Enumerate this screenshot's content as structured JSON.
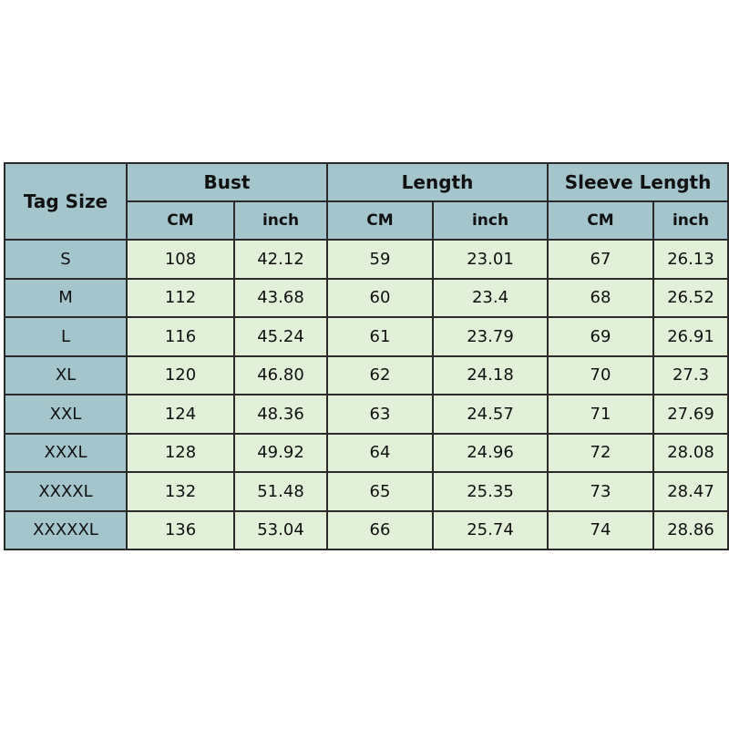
{
  "table": {
    "tag_size_header": "Tag Size",
    "groups": [
      "Bust",
      "Length",
      "Sleeve Length"
    ],
    "units": [
      "CM",
      "inch",
      "CM",
      "inch",
      "CM",
      "inch"
    ],
    "rows": [
      [
        "S",
        "108",
        "42.12",
        "59",
        "23.01",
        "67",
        "26.13"
      ],
      [
        "M",
        "112",
        "43.68",
        "60",
        "23.4",
        "68",
        "26.52"
      ],
      [
        "L",
        "116",
        "45.24",
        "61",
        "23.79",
        "69",
        "26.91"
      ],
      [
        "XL",
        "120",
        "46.80",
        "62",
        "24.18",
        "70",
        "27.3"
      ],
      [
        "XXL",
        "124",
        "48.36",
        "63",
        "24.57",
        "71",
        "27.69"
      ],
      [
        "XXXL",
        "128",
        "49.92",
        "64",
        "24.96",
        "72",
        "28.08"
      ],
      [
        "XXXXL",
        "132",
        "51.48",
        "65",
        "25.35",
        "73",
        "28.47"
      ],
      [
        "XXXXXL",
        "136",
        "53.04",
        "66",
        "25.74",
        "74",
        "28.86"
      ]
    ],
    "colors": {
      "header": "#a4c5cc",
      "body": "#e2efd9",
      "border": "#2a2a2a"
    }
  }
}
